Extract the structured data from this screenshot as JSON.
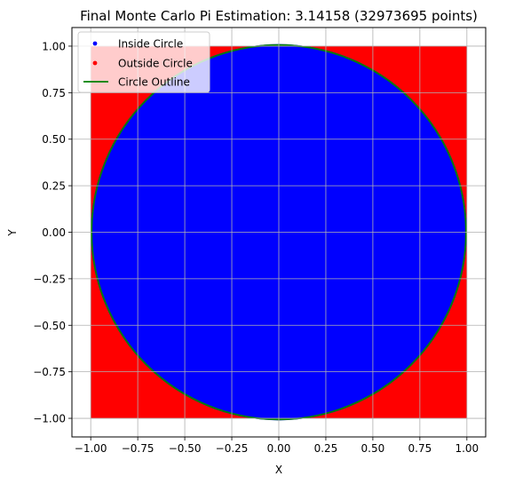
{
  "chart_data": {
    "type": "scatter",
    "title": "Final Monte Carlo Pi Estimation: 3.14158 (32973695 points)",
    "xlabel": "X",
    "ylabel": "Y",
    "xlim": [
      -1.1,
      1.1
    ],
    "ylim": [
      -1.1,
      1.1
    ],
    "grid": true,
    "legend_position": "top-left",
    "x_ticks": [
      -1.0,
      -0.75,
      -0.5,
      -0.25,
      0.0,
      0.25,
      0.5,
      0.75,
      1.0
    ],
    "y_ticks": [
      -1.0,
      -0.75,
      -0.5,
      -0.25,
      0.0,
      0.25,
      0.5,
      0.75,
      1.0
    ],
    "x_tick_labels": [
      "−1.00",
      "−0.75",
      "−0.50",
      "−0.25",
      "0.00",
      "0.25",
      "0.50",
      "0.75",
      "1.00"
    ],
    "y_tick_labels": [
      "−1.00",
      "−0.75",
      "−0.50",
      "−0.25",
      "0.00",
      "0.25",
      "0.50",
      "0.75",
      "1.00"
    ],
    "sample_square": {
      "x_range": [
        -1,
        1
      ],
      "y_range": [
        -1,
        1
      ]
    },
    "circle": {
      "cx": 0,
      "cy": 0,
      "r": 1
    },
    "series": [
      {
        "name": "Inside Circle",
        "kind": "scatter",
        "color": "#0000ff",
        "region": "x^2 + y^2 <= 1"
      },
      {
        "name": "Outside Circle",
        "kind": "scatter",
        "color": "#ff0000",
        "region": "x^2 + y^2 > 1"
      },
      {
        "name": "Circle Outline",
        "kind": "line",
        "color": "#008000"
      }
    ]
  }
}
